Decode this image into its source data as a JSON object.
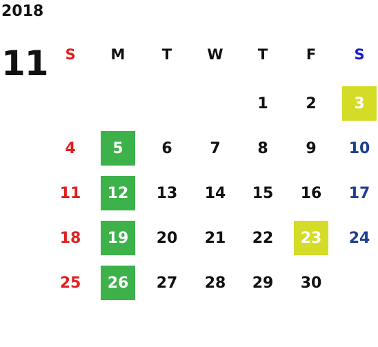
{
  "calendar": {
    "year": "2018",
    "month": "11",
    "weekdays": [
      "S",
      "M",
      "T",
      "W",
      "T",
      "F",
      "S"
    ],
    "weeks": [
      [
        "",
        "",
        "",
        "",
        "1",
        "2",
        "3"
      ],
      [
        "4",
        "5",
        "6",
        "7",
        "8",
        "9",
        "10"
      ],
      [
        "11",
        "12",
        "13",
        "14",
        "15",
        "16",
        "17"
      ],
      [
        "18",
        "19",
        "20",
        "21",
        "22",
        "23",
        "24"
      ],
      [
        "25",
        "26",
        "27",
        "28",
        "29",
        "30",
        ""
      ]
    ],
    "highlight_green": [
      "5",
      "12",
      "19",
      "26"
    ],
    "highlight_yellow": [
      "3",
      "23"
    ],
    "colors": {
      "sunday": "#e02020",
      "saturday_header": "#1a1ad0",
      "saturday": "#1d3f8f",
      "green": "#3db24a",
      "yellow": "#d4dc28"
    }
  }
}
